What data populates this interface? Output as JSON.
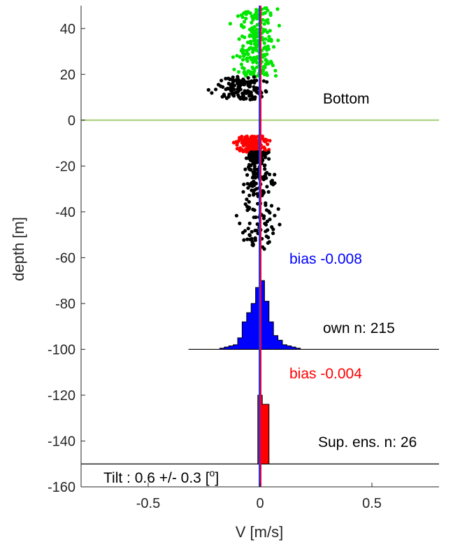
{
  "chart_data": {
    "type": "scatter",
    "xlabel": "V [m/s]",
    "ylabel": "depth [m]",
    "xlim": [
      -0.8,
      0.8
    ],
    "ylim": [
      -160,
      50
    ],
    "xticks": [
      -0.5,
      0,
      0.5
    ],
    "xtick_labels": [
      "-0.5",
      "0",
      "0.5"
    ],
    "yticks": [
      40,
      20,
      0,
      -20,
      -40,
      -60,
      -80,
      -100,
      -120,
      -140,
      -160
    ],
    "ytick_labels": [
      "40",
      "20",
      "0",
      "-20",
      "-40",
      "-60",
      "-80",
      "-100",
      "-120",
      "-140",
      "-160"
    ],
    "grid": false,
    "colors": {
      "green_points": "#00e600",
      "black_points": "#000000",
      "red_points": "#ff0000",
      "bottom_line": "#a6cc73",
      "vertical_line_blue": "#3333cc",
      "vertical_line_red": "#e6004d",
      "hist_own": "#0000ff",
      "hist_sup": "#ff0000",
      "bias_own_text": "#0000ff",
      "bias_sup_text": "#ff0000"
    },
    "scatter_groups": [
      {
        "color_key": "green_points",
        "x_range": [
          -0.2,
          0.18
        ],
        "y_range": [
          19,
          49
        ],
        "count": 230
      },
      {
        "color_key": "black_points",
        "x_range": [
          -0.3,
          0.16
        ],
        "y_range": [
          9,
          19
        ],
        "count": 130
      },
      {
        "color_key": "red_points",
        "x_range": [
          -0.18,
          0.12
        ],
        "y_range": [
          -14,
          -7
        ],
        "count": 180
      },
      {
        "color_key": "black_points",
        "x_range": [
          -0.18,
          0.18
        ],
        "y_range": [
          -57,
          -14
        ],
        "count": 280
      }
    ],
    "reference_lines": {
      "bottom_depth": 0,
      "own_base_depth": -100,
      "sup_base_depth": -150,
      "vertical_x": 0
    },
    "hist_own": {
      "base_depth": -100,
      "bins": [
        {
          "x0": -0.18,
          "x1": -0.16,
          "top": -99.5
        },
        {
          "x0": -0.16,
          "x1": -0.14,
          "top": -99
        },
        {
          "x0": -0.14,
          "x1": -0.12,
          "top": -98.5
        },
        {
          "x0": -0.12,
          "x1": -0.1,
          "top": -98
        },
        {
          "x0": -0.1,
          "x1": -0.08,
          "top": -95
        },
        {
          "x0": -0.08,
          "x1": -0.06,
          "top": -88
        },
        {
          "x0": -0.06,
          "x1": -0.04,
          "top": -84
        },
        {
          "x0": -0.04,
          "x1": -0.02,
          "top": -80
        },
        {
          "x0": -0.02,
          "x1": 0.0,
          "top": -73
        },
        {
          "x0": 0.0,
          "x1": 0.02,
          "top": -70
        },
        {
          "x0": 0.02,
          "x1": 0.04,
          "top": -79
        },
        {
          "x0": 0.04,
          "x1": 0.06,
          "top": -88
        },
        {
          "x0": 0.06,
          "x1": 0.08,
          "top": -94
        },
        {
          "x0": 0.08,
          "x1": 0.1,
          "top": -96
        },
        {
          "x0": 0.1,
          "x1": 0.12,
          "top": -98
        },
        {
          "x0": 0.12,
          "x1": 0.14,
          "top": -98.5
        },
        {
          "x0": 0.14,
          "x1": 0.16,
          "top": -99
        },
        {
          "x0": 0.16,
          "x1": 0.18,
          "top": -99.5
        }
      ]
    },
    "hist_sup": {
      "base_depth": -150,
      "bins": [
        {
          "x0": -0.01,
          "x1": 0.01,
          "top": -120
        },
        {
          "x0": 0.01,
          "x1": 0.04,
          "top": -124
        }
      ]
    },
    "annotations": {
      "bottom_label": "Bottom",
      "bias_own": "bias -0.008",
      "own_n": "own n: 215",
      "bias_sup": "bias -0.004",
      "sup_n": "Sup. ens. n: 26",
      "tilt": "Tilt : 0.6 +/- 0.3 [",
      "tilt_unit_super": "o",
      "tilt_close": "]"
    }
  }
}
